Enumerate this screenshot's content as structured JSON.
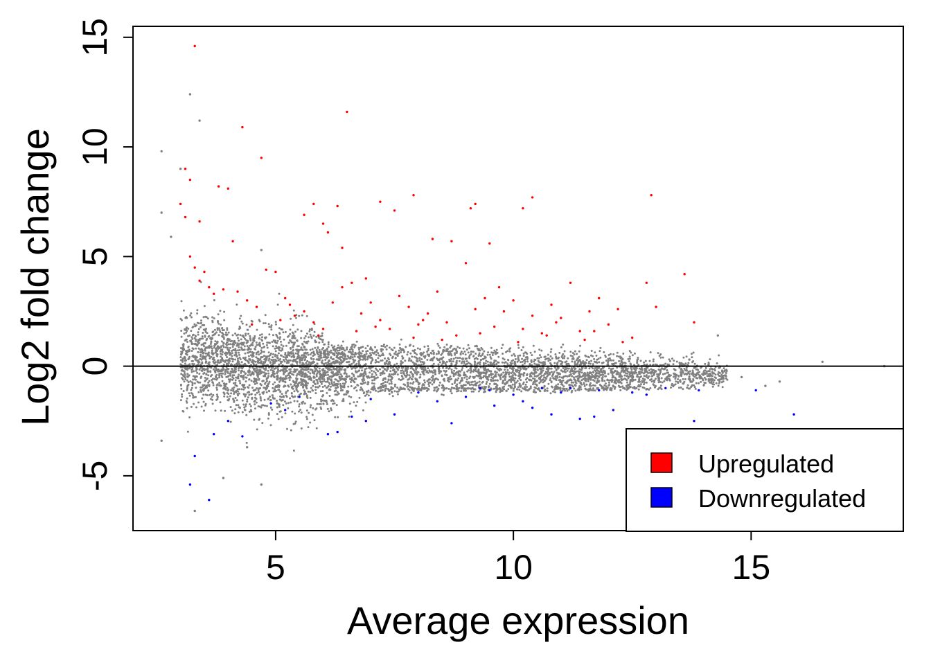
{
  "chart_data": {
    "type": "scatter",
    "title": "",
    "xlabel": "Average expression",
    "ylabel": "Log2 fold change",
    "xlim": [
      2.0,
      18.2
    ],
    "ylim": [
      -7.5,
      15.5
    ],
    "xticks": [
      5,
      10,
      15
    ],
    "yticks": [
      -5,
      0,
      5,
      10,
      15
    ],
    "xtick_labels": [
      "5",
      "10",
      "15"
    ],
    "ytick_labels": [
      "-5",
      "0",
      "5",
      "10",
      "15"
    ],
    "reference_line_y": 0,
    "grid": false,
    "legend": {
      "placement": "bottom-right",
      "entries": [
        {
          "label": "Upregulated",
          "color": "#ff0000"
        },
        {
          "label": "Downregulated",
          "color": "#0000ff"
        }
      ]
    },
    "colors": {
      "not_significant": "#808080",
      "up": "#ff0000",
      "down": "#0000ff"
    },
    "series": [
      {
        "group": "up",
        "color": "#ff0000",
        "points": [
          [
            3.3,
            14.6
          ],
          [
            6.5,
            11.6
          ],
          [
            4.3,
            10.9
          ],
          [
            4.7,
            9.5
          ],
          [
            3.1,
            9.0
          ],
          [
            3.2,
            8.5
          ],
          [
            3.8,
            8.2
          ],
          [
            4.0,
            8.1
          ],
          [
            12.9,
            7.8
          ],
          [
            7.9,
            7.8
          ],
          [
            10.4,
            7.7
          ],
          [
            7.2,
            7.5
          ],
          [
            5.8,
            7.4
          ],
          [
            6.3,
            7.3
          ],
          [
            9.2,
            7.4
          ],
          [
            7.5,
            7.1
          ],
          [
            9.1,
            7.2
          ],
          [
            10.2,
            7.2
          ],
          [
            3.0,
            7.4
          ],
          [
            3.1,
            6.8
          ],
          [
            5.6,
            6.9
          ],
          [
            6.0,
            6.5
          ],
          [
            3.4,
            6.6
          ],
          [
            6.1,
            6.1
          ],
          [
            4.1,
            5.7
          ],
          [
            8.3,
            5.8
          ],
          [
            9.5,
            5.6
          ],
          [
            8.7,
            5.7
          ],
          [
            6.4,
            5.4
          ],
          [
            3.2,
            5.0
          ],
          [
            3.3,
            4.5
          ],
          [
            3.5,
            4.3
          ],
          [
            3.6,
            3.6
          ],
          [
            3.7,
            3.3
          ],
          [
            3.4,
            3.9
          ],
          [
            3.9,
            3.5
          ],
          [
            4.2,
            3.4
          ],
          [
            4.4,
            3.0
          ],
          [
            4.6,
            2.7
          ],
          [
            4.8,
            4.4
          ],
          [
            5.0,
            4.3
          ],
          [
            5.2,
            3.1
          ],
          [
            5.4,
            2.3
          ],
          [
            5.6,
            2.5
          ],
          [
            5.8,
            2.0
          ],
          [
            6.0,
            1.7
          ],
          [
            6.2,
            2.9
          ],
          [
            6.4,
            3.6
          ],
          [
            6.6,
            3.8
          ],
          [
            6.8,
            2.4
          ],
          [
            7.0,
            2.9
          ],
          [
            7.2,
            2.1
          ],
          [
            7.4,
            1.7
          ],
          [
            7.6,
            3.2
          ],
          [
            7.8,
            2.7
          ],
          [
            8.0,
            1.9
          ],
          [
            8.2,
            2.4
          ],
          [
            8.4,
            3.4
          ],
          [
            8.6,
            2.0
          ],
          [
            8.8,
            1.4
          ],
          [
            9.0,
            4.7
          ],
          [
            9.2,
            2.6
          ],
          [
            9.4,
            3.1
          ],
          [
            9.6,
            1.8
          ],
          [
            9.8,
            2.5
          ],
          [
            10.0,
            3.0
          ],
          [
            10.2,
            1.7
          ],
          [
            10.4,
            2.3
          ],
          [
            10.6,
            1.5
          ],
          [
            10.8,
            2.8
          ],
          [
            11.0,
            2.2
          ],
          [
            11.2,
            3.8
          ],
          [
            11.4,
            1.6
          ],
          [
            11.6,
            2.5
          ],
          [
            11.8,
            3.1
          ],
          [
            12.0,
            1.9
          ],
          [
            12.2,
            2.6
          ],
          [
            12.5,
            1.3
          ],
          [
            12.8,
            3.8
          ],
          [
            13.0,
            2.7
          ],
          [
            13.6,
            4.2
          ],
          [
            13.8,
            2.0
          ],
          [
            5.1,
            2.1
          ],
          [
            5.9,
            1.4
          ],
          [
            6.7,
            1.6
          ],
          [
            7.1,
            1.8
          ],
          [
            7.9,
            1.3
          ],
          [
            8.5,
            1.2
          ],
          [
            9.3,
            1.5
          ],
          [
            10.1,
            1.1
          ],
          [
            10.7,
            1.4
          ],
          [
            11.5,
            1.2
          ],
          [
            12.3,
            1.1
          ],
          [
            6.9,
            4.0
          ],
          [
            8.1,
            2.1
          ],
          [
            9.7,
            3.6
          ],
          [
            10.9,
            2.0
          ],
          [
            11.7,
            1.6
          ],
          [
            4.5,
            1.9
          ],
          [
            5.3,
            2.8
          ]
        ]
      },
      {
        "group": "down",
        "color": "#0000ff",
        "points": [
          [
            3.2,
            -5.4
          ],
          [
            3.6,
            -6.1
          ],
          [
            3.3,
            -4.1
          ],
          [
            3.7,
            -3.1
          ],
          [
            4.3,
            -3.2
          ],
          [
            4.0,
            -2.5
          ],
          [
            4.9,
            -1.7
          ],
          [
            5.5,
            -1.4
          ],
          [
            6.3,
            -3.0
          ],
          [
            6.1,
            -3.1
          ],
          [
            6.9,
            -2.5
          ],
          [
            7.5,
            -2.2
          ],
          [
            8.7,
            -2.6
          ],
          [
            9.6,
            -1.8
          ],
          [
            10.4,
            -1.9
          ],
          [
            10.8,
            -2.2
          ],
          [
            11.4,
            -2.4
          ],
          [
            11.7,
            -2.3
          ],
          [
            12.1,
            -2.0
          ],
          [
            13.8,
            -2.5
          ],
          [
            15.1,
            -1.1
          ],
          [
            15.9,
            -2.2
          ],
          [
            7.0,
            -1.5
          ],
          [
            8.0,
            -1.2
          ],
          [
            9.0,
            -1.4
          ],
          [
            9.5,
            -1.1
          ],
          [
            10.0,
            -1.3
          ],
          [
            10.6,
            -1.0
          ],
          [
            11.0,
            -1.2
          ],
          [
            11.8,
            -1.1
          ],
          [
            12.5,
            -1.2
          ],
          [
            13.2,
            -1.0
          ],
          [
            13.9,
            -1.1
          ],
          [
            5.2,
            -2.0
          ],
          [
            6.6,
            -2.3
          ],
          [
            8.4,
            -1.6
          ],
          [
            9.3,
            -1.0
          ],
          [
            10.2,
            -1.6
          ],
          [
            11.2,
            -1.0
          ],
          [
            12.8,
            -1.3
          ]
        ]
      },
      {
        "group": "not_significant",
        "color": "#808080",
        "points": [
          [
            3.2,
            12.4
          ],
          [
            3.4,
            11.2
          ],
          [
            2.6,
            9.8
          ],
          [
            3.0,
            9.0
          ],
          [
            2.6,
            7.0
          ],
          [
            2.8,
            5.9
          ],
          [
            4.7,
            5.3
          ],
          [
            3.9,
            -5.1
          ],
          [
            2.6,
            -3.4
          ],
          [
            3.3,
            -6.6
          ],
          [
            4.7,
            -5.4
          ],
          [
            4.4,
            -3.7
          ],
          [
            14.3,
            1.4
          ],
          [
            16.5,
            0.2
          ],
          [
            17.8,
            0.0
          ],
          [
            15.6,
            -0.7
          ],
          [
            15.3,
            -0.9
          ],
          [
            14.8,
            -0.5
          ],
          [
            14.4,
            -0.3
          ],
          [
            13.7,
            0.3
          ]
        ]
      }
    ]
  }
}
